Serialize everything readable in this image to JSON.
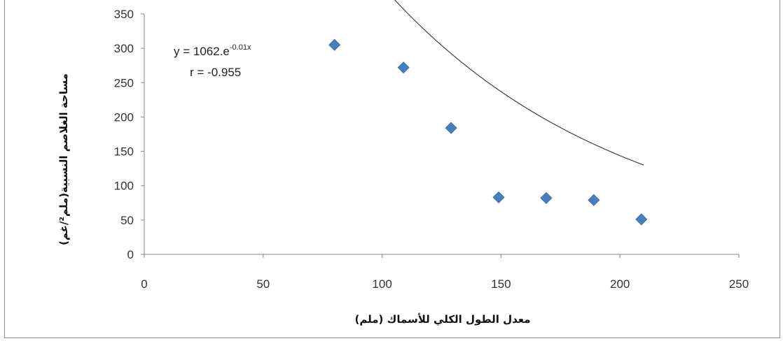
{
  "chart_data": {
    "type": "scatter",
    "title": "",
    "xlabel": "معدل الطول الكلي للأسماك (ملم)",
    "ylabel": "مساحة الغلاصم النسبية(ملم²/غم)",
    "xlim": [
      0,
      250
    ],
    "ylim": [
      0,
      350
    ],
    "x_ticks": [
      0,
      50,
      100,
      150,
      200,
      250
    ],
    "y_ticks": [
      0,
      50,
      100,
      150,
      200,
      250,
      300,
      350
    ],
    "grid": false,
    "legend": "none",
    "marker": "diamond",
    "series": [
      {
        "color": "#4a7ebb",
        "x": [
          80,
          109,
          129,
          149,
          169,
          189,
          209
        ],
        "y": [
          305,
          272,
          184,
          83,
          82,
          79,
          51
        ]
      }
    ],
    "trendline": {
      "type": "exponential",
      "a": 1062,
      "b": -0.01,
      "x_range": [
        80,
        210
      ],
      "color": "#333333"
    },
    "annotations": {
      "equation_base": "y = 1062.e",
      "equation_exponent": "-0.01x",
      "r_value": "r = -0.955"
    }
  }
}
